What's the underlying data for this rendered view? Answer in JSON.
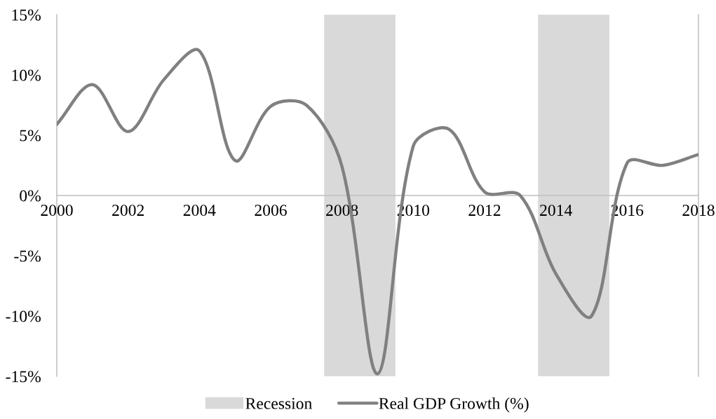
{
  "chart_data": {
    "type": "line",
    "x": [
      2000,
      2001,
      2002,
      2003,
      2004,
      2005,
      2006,
      2007,
      2008,
      2009,
      2010,
      2011,
      2012,
      2013,
      2014,
      2015,
      2016,
      2017,
      2018
    ],
    "series": [
      {
        "name": "Real GDP Growth (%)",
        "color": "#808080",
        "values": [
          5.9,
          9.2,
          5.3,
          9.6,
          12.0,
          2.9,
          7.4,
          7.5,
          2.4,
          -14.8,
          4.1,
          5.5,
          0.3,
          0.0,
          -6.5,
          -10.0,
          2.7,
          2.5,
          3.4
        ]
      }
    ],
    "xlim": [
      2000,
      2018
    ],
    "xticks": [
      2000,
      2002,
      2004,
      2006,
      2008,
      2010,
      2012,
      2014,
      2016,
      2018
    ],
    "ylim": [
      -15,
      15
    ],
    "yticks": [
      {
        "value": -15,
        "label": "-15%"
      },
      {
        "value": -10,
        "label": "-10%"
      },
      {
        "value": -5,
        "label": "-5%"
      },
      {
        "value": 0,
        "label": "0%"
      },
      {
        "value": 5,
        "label": "5%"
      },
      {
        "value": 10,
        "label": "10%"
      },
      {
        "value": 15,
        "label": "15%"
      }
    ],
    "bands": [
      {
        "axis": "x",
        "from": 2007.5,
        "to": 2009.5,
        "label": "Recession",
        "color": "#d9d9d9"
      },
      {
        "axis": "x",
        "from": 2013.5,
        "to": 2015.5,
        "color": "#d9d9d9"
      }
    ],
    "legend": "bottom",
    "line_style": "solid"
  }
}
